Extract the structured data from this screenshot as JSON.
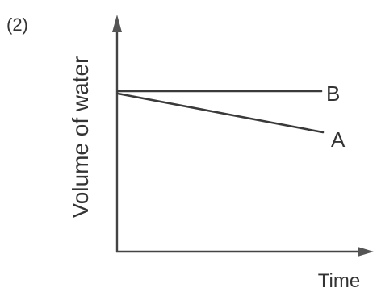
{
  "panel_label": "(2)",
  "chart_data": {
    "type": "line",
    "xlabel": "Time",
    "ylabel": "Volume of water",
    "grid": false,
    "legend": "none",
    "line_labels_position": "at line end, right",
    "series": [
      {
        "name": "B",
        "shape": "constant",
        "color": "#3a3a3a"
      },
      {
        "name": "A",
        "shape": "steadily decreasing",
        "color": "#3a3a3a"
      }
    ]
  }
}
